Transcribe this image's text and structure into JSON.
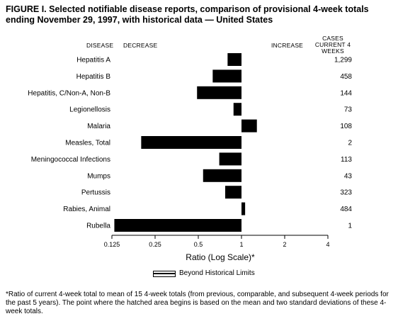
{
  "figure": {
    "title": "FIGURE I. Selected notifiable disease reports, comparison of provisional 4-week totals ending November 29, 1997, with historical data — United States",
    "col_disease": "DISEASE",
    "col_decrease": "DECREASE",
    "col_increase": "INCREASE",
    "col_cases": "CASES CURRENT 4 WEEKS",
    "legend_label": "Beyond Historical Limits",
    "footnote": "*Ratio of current 4-week total to mean of 15 4-week totals (from previous, comparable, and subsequent 4-week periods for the past 5 years). The point where the hatched area begins is based on the mean and two standard deviations of these 4-week totals."
  },
  "chart_data": {
    "type": "bar",
    "orientation": "horizontal",
    "xlabel": "Ratio (Log Scale)*",
    "x_scale": "log2",
    "xlim": [
      0.125,
      4
    ],
    "x_ticks": [
      "0.125",
      "0.25",
      "0.5",
      "1",
      "2",
      "4"
    ],
    "baseline": 1,
    "categories": [
      "Hepatitis A",
      "Hepatitis B",
      "Hepatitis, C/Non-A, Non-B",
      "Legionellosis",
      "Malaria",
      "Measles, Total",
      "Meningococcal Infections",
      "Mumps",
      "Pertussis",
      "Rabies, Animal",
      "Rubella"
    ],
    "values": [
      0.8,
      0.63,
      0.49,
      0.88,
      1.28,
      0.2,
      0.7,
      0.54,
      0.77,
      1.06,
      0.13
    ],
    "cases": [
      "1,299",
      "458",
      "144",
      "73",
      "108",
      "2",
      "113",
      "43",
      "323",
      "484",
      "1"
    ]
  }
}
